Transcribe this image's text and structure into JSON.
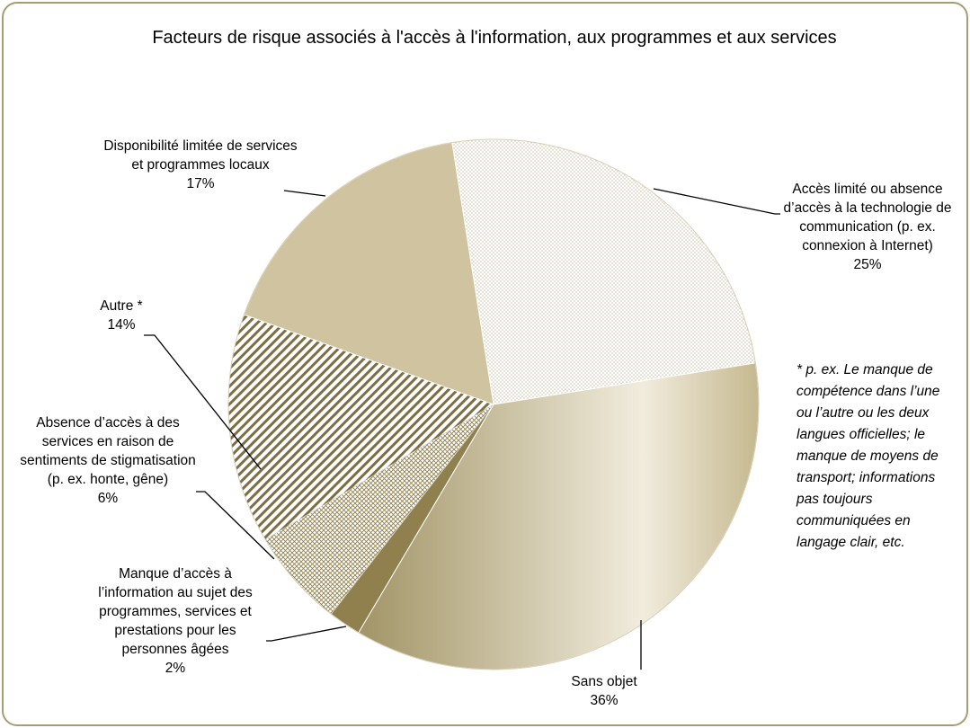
{
  "chart_data": {
    "type": "pie",
    "title": "Facteurs de risque associés à l'accès à l'information, aux programmes et aux services",
    "categories": [
      "Accès limité ou absence d’accès à la technologie de communication (p. ex. connexion à Internet)",
      "Sans objet",
      "Manque d’accès à l’information au sujet des programmes, services et prestations pour les personnes âgées",
      "Absence d’accès à des services en raison de sentiments de stigmatisation (p. ex. honte, gêne)",
      "Autre *",
      "Disponibilité limitée de services et programmes locaux"
    ],
    "values": [
      25,
      36,
      2,
      6,
      14,
      17
    ],
    "value_labels": [
      "25%",
      "36%",
      "2%",
      "6%",
      "14%",
      "17%"
    ],
    "colors": [
      "#ffffff",
      "#c9bc93",
      "#8f804e",
      "#ffffff",
      "#ffffff",
      "#cfc3a0"
    ],
    "patterns": [
      "dots",
      "gradient",
      "solid",
      "crosshatch",
      "stripes",
      "solid"
    ],
    "note": "* p. ex. Le manque de compétence dans l’une ou l’autre ou les deux langues officielles; le manque de moyens de transport; informations pas toujours communiquées en langage clair, etc."
  }
}
